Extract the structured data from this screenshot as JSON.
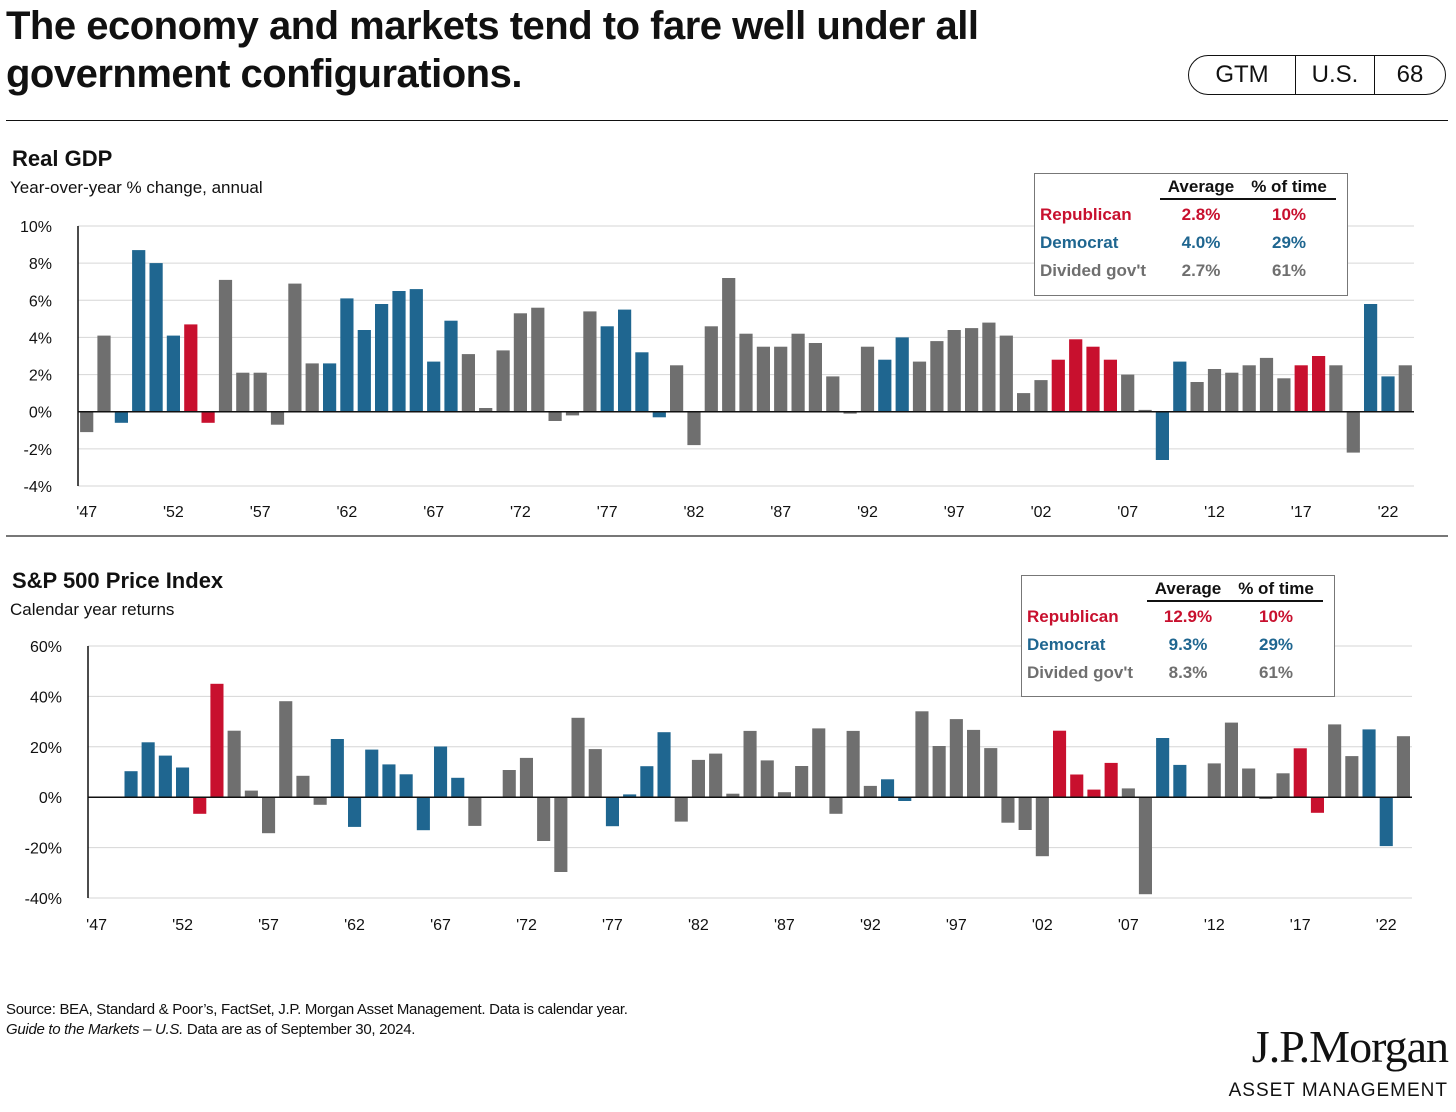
{
  "page": {
    "title_line1": "The economy and markets tend to fare well under all",
    "title_line2": "government configurations.",
    "badge": [
      "GTM",
      "U.S.",
      "68"
    ]
  },
  "colors": {
    "Republican": "#c8102e",
    "Democrat": "#1f6690",
    "Divided gov't": "#6f6f6f"
  },
  "gdp_panel": {
    "title": "Real GDP",
    "subtitle": "Year-over-year % change, annual",
    "legend": {
      "headers": [
        "Average",
        "% of time"
      ],
      "rows": [
        {
          "party": "Republican",
          "average": "2.8%",
          "pct_time": "10%"
        },
        {
          "party": "Democrat",
          "average": "4.0%",
          "pct_time": "29%"
        },
        {
          "party": "Divided gov't",
          "average": "2.7%",
          "pct_time": "61%"
        }
      ]
    }
  },
  "sp_panel": {
    "title": "S&P 500 Price Index",
    "subtitle": "Calendar year returns",
    "legend": {
      "headers": [
        "Average",
        "% of time"
      ],
      "rows": [
        {
          "party": "Republican",
          "average": "12.9%",
          "pct_time": "10%"
        },
        {
          "party": "Democrat",
          "average": "9.3%",
          "pct_time": "29%"
        },
        {
          "party": "Divided gov't",
          "average": "8.3%",
          "pct_time": "61%"
        }
      ]
    }
  },
  "chart_data": [
    {
      "type": "bar",
      "title": "Real GDP",
      "subtitle": "Year-over-year % change, annual",
      "ylim": [
        -4,
        10
      ],
      "yticks": [
        -4,
        -2,
        0,
        2,
        4,
        6,
        8,
        10
      ],
      "ytick_labels": [
        "-4%",
        "-2%",
        "0%",
        "2%",
        "4%",
        "6%",
        "8%",
        "10%"
      ],
      "y_unit": "%",
      "xtick_labels": [
        "'47",
        "'52",
        "'57",
        "'62",
        "'67",
        "'72",
        "'77",
        "'82",
        "'87",
        "'92",
        "'97",
        "'02",
        "'07",
        "'12",
        "'17",
        "'22"
      ],
      "grid": true,
      "years": [
        1947,
        1948,
        1949,
        1950,
        1951,
        1952,
        1953,
        1954,
        1955,
        1956,
        1957,
        1958,
        1959,
        1960,
        1961,
        1962,
        1963,
        1964,
        1965,
        1966,
        1967,
        1968,
        1969,
        1970,
        1971,
        1972,
        1973,
        1974,
        1975,
        1976,
        1977,
        1978,
        1979,
        1980,
        1981,
        1982,
        1983,
        1984,
        1985,
        1986,
        1987,
        1988,
        1989,
        1990,
        1991,
        1992,
        1993,
        1994,
        1995,
        1996,
        1997,
        1998,
        1999,
        2000,
        2001,
        2002,
        2003,
        2004,
        2005,
        2006,
        2007,
        2008,
        2009,
        2010,
        2011,
        2012,
        2013,
        2014,
        2015,
        2016,
        2017,
        2018,
        2019,
        2020,
        2021,
        2022,
        2023
      ],
      "values": [
        -1.1,
        4.1,
        -0.6,
        8.7,
        8.0,
        4.1,
        4.7,
        -0.6,
        7.1,
        2.1,
        2.1,
        -0.7,
        6.9,
        2.6,
        2.6,
        6.1,
        4.4,
        5.8,
        6.5,
        6.6,
        2.7,
        4.9,
        3.1,
        0.2,
        3.3,
        5.3,
        5.6,
        -0.5,
        -0.2,
        5.4,
        4.6,
        5.5,
        3.2,
        -0.3,
        2.5,
        -1.8,
        4.6,
        7.2,
        4.2,
        3.5,
        3.5,
        4.2,
        3.7,
        1.9,
        -0.1,
        3.5,
        2.8,
        4.0,
        2.7,
        3.8,
        4.4,
        4.5,
        4.8,
        4.1,
        1.0,
        1.7,
        2.8,
        3.9,
        3.5,
        2.8,
        2.0,
        0.1,
        -2.6,
        2.7,
        1.6,
        2.3,
        2.1,
        2.5,
        2.9,
        1.8,
        2.5,
        3.0,
        2.5,
        -2.2,
        5.8,
        1.9,
        2.5
      ],
      "series": [
        {
          "name": "Republican",
          "years": [
            1953,
            1954,
            2003,
            2004,
            2005,
            2006,
            2017,
            2018
          ]
        },
        {
          "name": "Democrat",
          "years": [
            1949,
            1950,
            1951,
            1952,
            1961,
            1962,
            1963,
            1964,
            1965,
            1966,
            1967,
            1968,
            1977,
            1978,
            1979,
            1980,
            1993,
            1994,
            2009,
            2010,
            2021,
            2022
          ]
        },
        {
          "name": "Divided gov't",
          "years": "all other years"
        }
      ]
    },
    {
      "type": "bar",
      "title": "S&P 500 Price Index",
      "subtitle": "Calendar year returns",
      "ylim": [
        -40,
        60
      ],
      "yticks": [
        -40,
        -20,
        0,
        20,
        40,
        60
      ],
      "ytick_labels": [
        "-40%",
        "-20%",
        "0%",
        "20%",
        "40%",
        "60%"
      ],
      "y_unit": "%",
      "xtick_labels": [
        "'47",
        "'52",
        "'57",
        "'62",
        "'67",
        "'72",
        "'77",
        "'82",
        "'87",
        "'92",
        "'97",
        "'02",
        "'07",
        "'12",
        "'17",
        "'22"
      ],
      "grid": true,
      "years": [
        1947,
        1948,
        1949,
        1950,
        1951,
        1952,
        1953,
        1954,
        1955,
        1956,
        1957,
        1958,
        1959,
        1960,
        1961,
        1962,
        1963,
        1964,
        1965,
        1966,
        1967,
        1968,
        1969,
        1970,
        1971,
        1972,
        1973,
        1974,
        1975,
        1976,
        1977,
        1978,
        1979,
        1980,
        1981,
        1982,
        1983,
        1984,
        1985,
        1986,
        1987,
        1988,
        1989,
        1990,
        1991,
        1992,
        1993,
        1994,
        1995,
        1996,
        1997,
        1998,
        1999,
        2000,
        2001,
        2002,
        2003,
        2004,
        2005,
        2006,
        2007,
        2008,
        2009,
        2010,
        2011,
        2012,
        2013,
        2014,
        2015,
        2016,
        2017,
        2018,
        2019,
        2020,
        2021,
        2022,
        2023
      ],
      "values": [
        0,
        0,
        10.3,
        21.8,
        16.5,
        11.8,
        -6.6,
        45.0,
        26.4,
        2.6,
        -14.3,
        38.1,
        8.5,
        -3.0,
        23.1,
        -11.8,
        18.9,
        13.0,
        9.1,
        -13.1,
        20.1,
        7.7,
        -11.4,
        0.1,
        10.8,
        15.6,
        -17.4,
        -29.7,
        31.5,
        19.1,
        -11.5,
        1.1,
        12.3,
        25.8,
        -9.7,
        14.8,
        17.3,
        1.4,
        26.3,
        14.6,
        2.0,
        12.4,
        27.3,
        -6.6,
        26.3,
        4.5,
        7.1,
        -1.5,
        34.1,
        20.3,
        31.0,
        26.7,
        19.5,
        -10.1,
        -13.0,
        -23.4,
        26.4,
        9.0,
        3.0,
        13.6,
        3.5,
        -38.5,
        23.5,
        12.8,
        0.0,
        13.4,
        29.6,
        11.4,
        -0.7,
        9.5,
        19.4,
        -6.2,
        28.9,
        16.3,
        26.9,
        -19.4,
        24.2
      ],
      "series": [
        {
          "name": "Republican",
          "years": [
            1953,
            1954,
            2003,
            2004,
            2005,
            2006,
            2017,
            2018
          ]
        },
        {
          "name": "Democrat",
          "years": [
            1949,
            1950,
            1951,
            1952,
            1961,
            1962,
            1963,
            1964,
            1965,
            1966,
            1967,
            1968,
            1977,
            1978,
            1979,
            1980,
            1993,
            1994,
            2009,
            2010,
            2021,
            2022
          ]
        },
        {
          "name": "Divided gov't",
          "years": "all other years"
        }
      ]
    }
  ],
  "footer": {
    "source_line": "Source: BEA, Standard & Poor’s, FactSet, J.P. Morgan Asset Management. Data is calendar year.",
    "guide_italic": "Guide to the Markets – U.S.",
    "guide_rest": " Data are as of September 30, 2024."
  },
  "logo": {
    "brand": "J.P.Morgan",
    "sub": "ASSET MANAGEMENT"
  }
}
